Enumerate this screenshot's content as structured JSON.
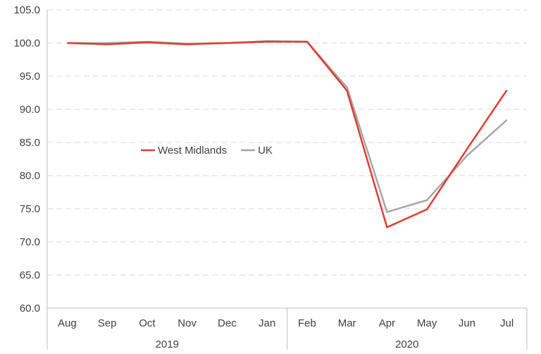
{
  "chart_data": {
    "type": "line",
    "categories": [
      "Aug",
      "Sep",
      "Oct",
      "Nov",
      "Dec",
      "Jan",
      "Feb",
      "Mar",
      "Apr",
      "May",
      "Jun",
      "Jul"
    ],
    "groups": [
      {
        "label": "2019",
        "count": 6
      },
      {
        "label": "2020",
        "count": 6
      }
    ],
    "series": [
      {
        "name": "West Midlands",
        "color": "#e03c31",
        "values": [
          100.0,
          99.8,
          100.1,
          99.8,
          100.0,
          100.2,
          100.2,
          92.8,
          72.2,
          74.9,
          84.0,
          92.9
        ]
      },
      {
        "name": "UK",
        "color": "#a6a6a6",
        "values": [
          100.0,
          100.0,
          100.2,
          99.9,
          100.0,
          100.3,
          100.2,
          93.3,
          74.5,
          76.3,
          83.0,
          88.4
        ]
      }
    ],
    "ylim": [
      60,
      105
    ],
    "yticks": [
      "60.0",
      "65.0",
      "70.0",
      "75.0",
      "80.0",
      "85.0",
      "90.0",
      "95.0",
      "100.0",
      "105.0"
    ],
    "grid": true,
    "legend_position": "center-left"
  }
}
